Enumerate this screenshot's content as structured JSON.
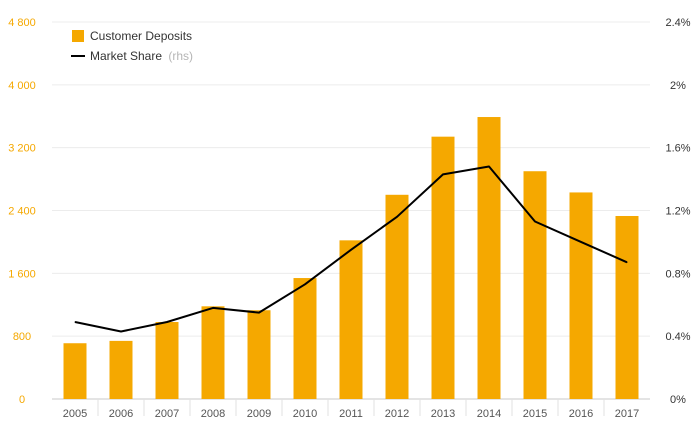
{
  "chart_data": {
    "type": "bar",
    "categories": [
      "2005",
      "2006",
      "2007",
      "2008",
      "2009",
      "2010",
      "2011",
      "2012",
      "2013",
      "2014",
      "2015",
      "2016",
      "2017"
    ],
    "series": [
      {
        "name": "Customer Deposits",
        "type": "bar",
        "axis": "left",
        "color": "#f5a800",
        "values": [
          710,
          740,
          980,
          1180,
          1130,
          1540,
          2020,
          2600,
          3340,
          3590,
          2900,
          2630,
          2330
        ]
      },
      {
        "name": "Market Share",
        "name_suffix": "(rhs)",
        "type": "line",
        "axis": "right",
        "color": "#000000",
        "values": [
          0.0049,
          0.0043,
          0.0049,
          0.0058,
          0.0055,
          0.0073,
          0.0095,
          0.0116,
          0.0143,
          0.0148,
          0.0113,
          0.01,
          0.0087
        ]
      }
    ],
    "y_left": {
      "ylim": [
        0,
        4800
      ],
      "ticks": [
        0,
        800,
        1600,
        2400,
        3200,
        4000,
        4800
      ],
      "tick_labels": [
        "0",
        "800",
        "1 600",
        "2 400",
        "3 200",
        "4 000",
        "4 800"
      ],
      "color": "#f5a800"
    },
    "y_right": {
      "ylim": [
        0,
        0.024
      ],
      "ticks": [
        0,
        0.004,
        0.008,
        0.012,
        0.016,
        0.02,
        0.024
      ],
      "tick_labels": [
        "0%",
        "0.4%",
        "0.8%",
        "1.2%",
        "1.6%",
        "2%",
        "2.4%"
      ]
    },
    "grid": true,
    "legend": "top-left"
  }
}
